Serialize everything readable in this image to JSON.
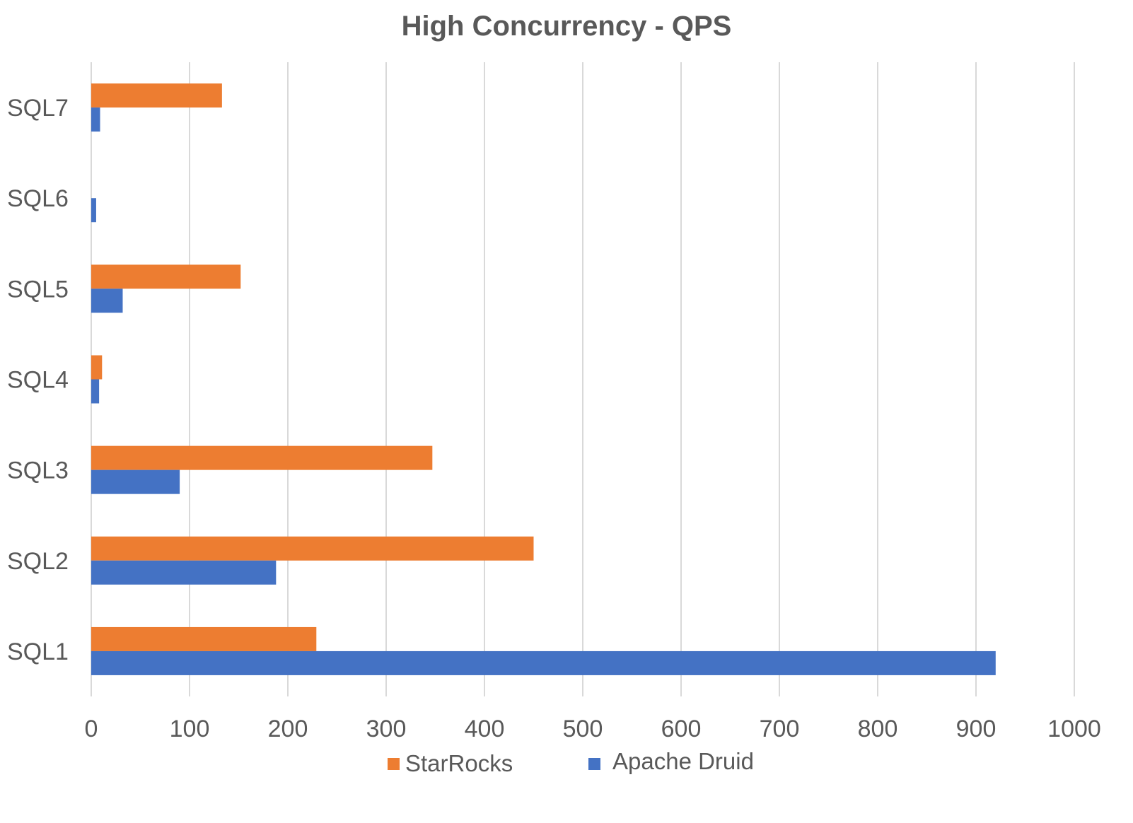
{
  "chart_data": {
    "type": "bar",
    "orientation": "horizontal",
    "title": "High Concurrency - QPS",
    "xlabel": "",
    "ylabel": "",
    "xlim": [
      0,
      1000
    ],
    "x_ticks": [
      0,
      100,
      200,
      300,
      400,
      500,
      600,
      700,
      800,
      900,
      1000
    ],
    "grid": true,
    "legend_position": "bottom",
    "categories": [
      "SQL1",
      "SQL2",
      "SQL3",
      "SQL4",
      "SQL5",
      "SQL6",
      "SQL7"
    ],
    "series": [
      {
        "name": "StarRocks",
        "color": "#ED7D31",
        "values": [
          229,
          450,
          347,
          11,
          152,
          0,
          133
        ]
      },
      {
        "name": "Apache Druid",
        "color": "#4472C4",
        "values": [
          920,
          188,
          90,
          8,
          32,
          5,
          9
        ]
      }
    ]
  }
}
